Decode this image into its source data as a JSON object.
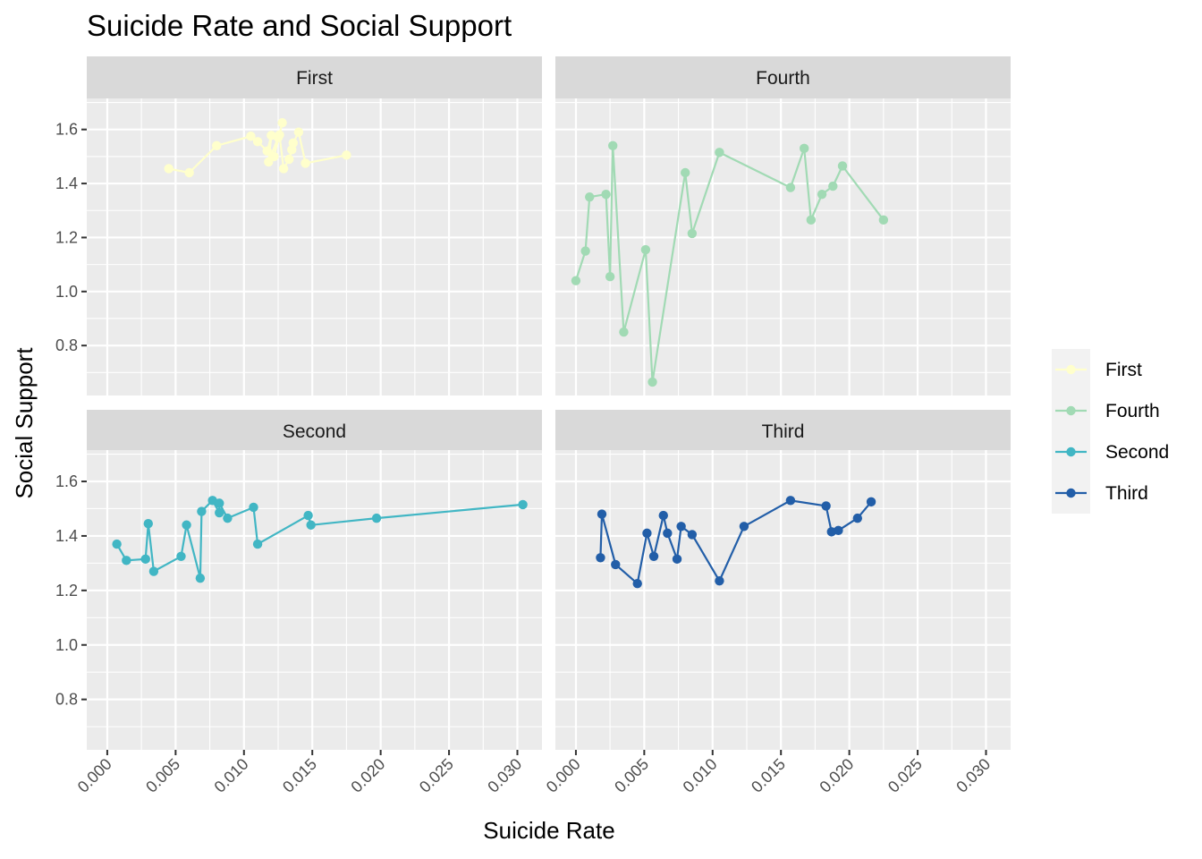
{
  "chart_data": {
    "type": "line",
    "title": "Suicide Rate and Social Support",
    "xlabel": "Suicide Rate",
    "ylabel": "Social Support",
    "xlim": [
      -0.0015,
      0.0318
    ],
    "ylim": [
      0.615,
      1.715
    ],
    "x_ticks": [
      0.0,
      0.005,
      0.01,
      0.015,
      0.02,
      0.025,
      0.03
    ],
    "x_tick_labels": [
      "0.000",
      "0.005",
      "0.010",
      "0.015",
      "0.020",
      "0.025",
      "0.030"
    ],
    "y_ticks": [
      0.8,
      1.0,
      1.2,
      1.4,
      1.6
    ],
    "y_tick_labels": [
      "0.8",
      "1.0",
      "1.2",
      "1.4",
      "1.6"
    ],
    "grid": true,
    "legend_placement": "right",
    "facet_layout": "2x2",
    "panels": [
      {
        "label": "First",
        "series": "First"
      },
      {
        "label": "Fourth",
        "series": "Fourth"
      },
      {
        "label": "Second",
        "series": "Second"
      },
      {
        "label": "Third",
        "series": "Third"
      }
    ],
    "series": [
      {
        "name": "First",
        "color": "#ffffcc",
        "points": [
          [
            0.0045,
            1.455
          ],
          [
            0.006,
            1.44
          ],
          [
            0.008,
            1.54
          ],
          [
            0.0105,
            1.575
          ],
          [
            0.011,
            1.555
          ],
          [
            0.0117,
            1.52
          ],
          [
            0.012,
            1.578
          ],
          [
            0.0118,
            1.48
          ],
          [
            0.0125,
            1.57
          ],
          [
            0.0122,
            1.5
          ],
          [
            0.0128,
            1.625
          ],
          [
            0.0126,
            1.58
          ],
          [
            0.0129,
            1.455
          ],
          [
            0.0133,
            1.49
          ],
          [
            0.0135,
            1.525
          ],
          [
            0.0136,
            1.55
          ],
          [
            0.014,
            1.59
          ],
          [
            0.0145,
            1.475
          ],
          [
            0.0175,
            1.505
          ]
        ]
      },
      {
        "name": "Fourth",
        "color": "#a1dab4",
        "points": [
          [
            0.0,
            1.04
          ],
          [
            0.0007,
            1.15
          ],
          [
            0.001,
            1.35
          ],
          [
            0.0022,
            1.36
          ],
          [
            0.0025,
            1.055
          ],
          [
            0.0027,
            1.54
          ],
          [
            0.0035,
            0.85
          ],
          [
            0.0051,
            1.155
          ],
          [
            0.0056,
            0.665
          ],
          [
            0.008,
            1.44
          ],
          [
            0.0085,
            1.215
          ],
          [
            0.0105,
            1.515
          ],
          [
            0.0157,
            1.385
          ],
          [
            0.0167,
            1.53
          ],
          [
            0.0172,
            1.265
          ],
          [
            0.018,
            1.36
          ],
          [
            0.0188,
            1.39
          ],
          [
            0.0195,
            1.465
          ],
          [
            0.0225,
            1.265
          ]
        ]
      },
      {
        "name": "Second",
        "color": "#41b6c4",
        "points": [
          [
            0.0007,
            1.37
          ],
          [
            0.0014,
            1.31
          ],
          [
            0.0028,
            1.315
          ],
          [
            0.003,
            1.445
          ],
          [
            0.0034,
            1.27
          ],
          [
            0.0054,
            1.325
          ],
          [
            0.0058,
            1.44
          ],
          [
            0.0068,
            1.245
          ],
          [
            0.0069,
            1.49
          ],
          [
            0.0077,
            1.53
          ],
          [
            0.0082,
            1.485
          ],
          [
            0.0082,
            1.52
          ],
          [
            0.0088,
            1.465
          ],
          [
            0.0107,
            1.505
          ],
          [
            0.011,
            1.37
          ],
          [
            0.0147,
            1.475
          ],
          [
            0.0149,
            1.44
          ],
          [
            0.0197,
            1.465
          ],
          [
            0.0304,
            1.515
          ]
        ]
      },
      {
        "name": "Third",
        "color": "#225ea8",
        "points": [
          [
            0.0018,
            1.32
          ],
          [
            0.0019,
            1.48
          ],
          [
            0.0029,
            1.295
          ],
          [
            0.0045,
            1.225
          ],
          [
            0.0052,
            1.41
          ],
          [
            0.0057,
            1.325
          ],
          [
            0.0064,
            1.475
          ],
          [
            0.0067,
            1.41
          ],
          [
            0.0074,
            1.315
          ],
          [
            0.0077,
            1.435
          ],
          [
            0.0085,
            1.405
          ],
          [
            0.0105,
            1.235
          ],
          [
            0.0123,
            1.435
          ],
          [
            0.0157,
            1.53
          ],
          [
            0.0183,
            1.51
          ],
          [
            0.0187,
            1.415
          ],
          [
            0.0192,
            1.42
          ],
          [
            0.0206,
            1.465
          ],
          [
            0.0216,
            1.525
          ]
        ]
      }
    ]
  }
}
